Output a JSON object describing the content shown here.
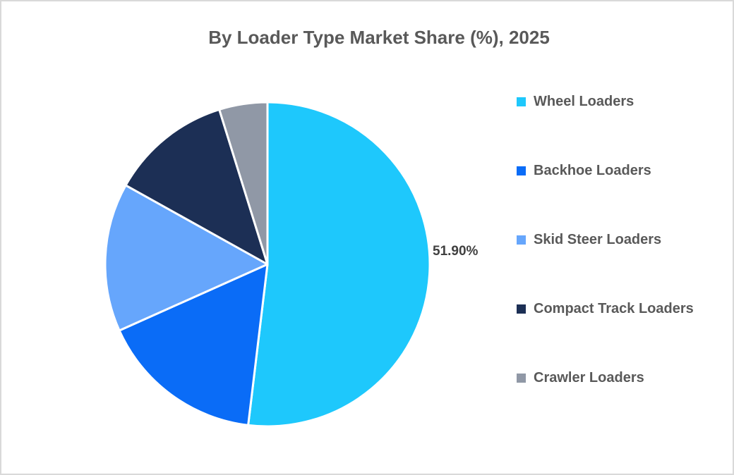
{
  "chart_data": {
    "type": "pie",
    "title": "By Loader Type Market Share (%), 2025",
    "categories": [
      "Wheel Loaders",
      "Backhoe Loaders",
      "Skid Steer Loaders",
      "Compact Track Loaders",
      "Crawler Loaders"
    ],
    "values": [
      51.9,
      16.4,
      14.8,
      12.1,
      4.8
    ],
    "colors": [
      "#1ec8fc",
      "#0a6cf7",
      "#66a6fc",
      "#1c2f55",
      "#9098a6"
    ],
    "data_labels": [
      {
        "category": "Wheel Loaders",
        "text": "51.90%"
      }
    ],
    "start_angle_deg": 0,
    "direction": "clockwise",
    "legend_position": "right"
  },
  "title": "By Loader Type Market Share (%), 2025",
  "data_label_wheel": "51.90%",
  "legend": [
    {
      "label": "Wheel Loaders",
      "color": "#1ec8fc"
    },
    {
      "label": "Backhoe Loaders",
      "color": "#0a6cf7"
    },
    {
      "label": "Skid Steer Loaders",
      "color": "#66a6fc"
    },
    {
      "label": "Compact Track Loaders",
      "color": "#1c2f55"
    },
    {
      "label": "Crawler Loaders",
      "color": "#9098a6"
    }
  ]
}
